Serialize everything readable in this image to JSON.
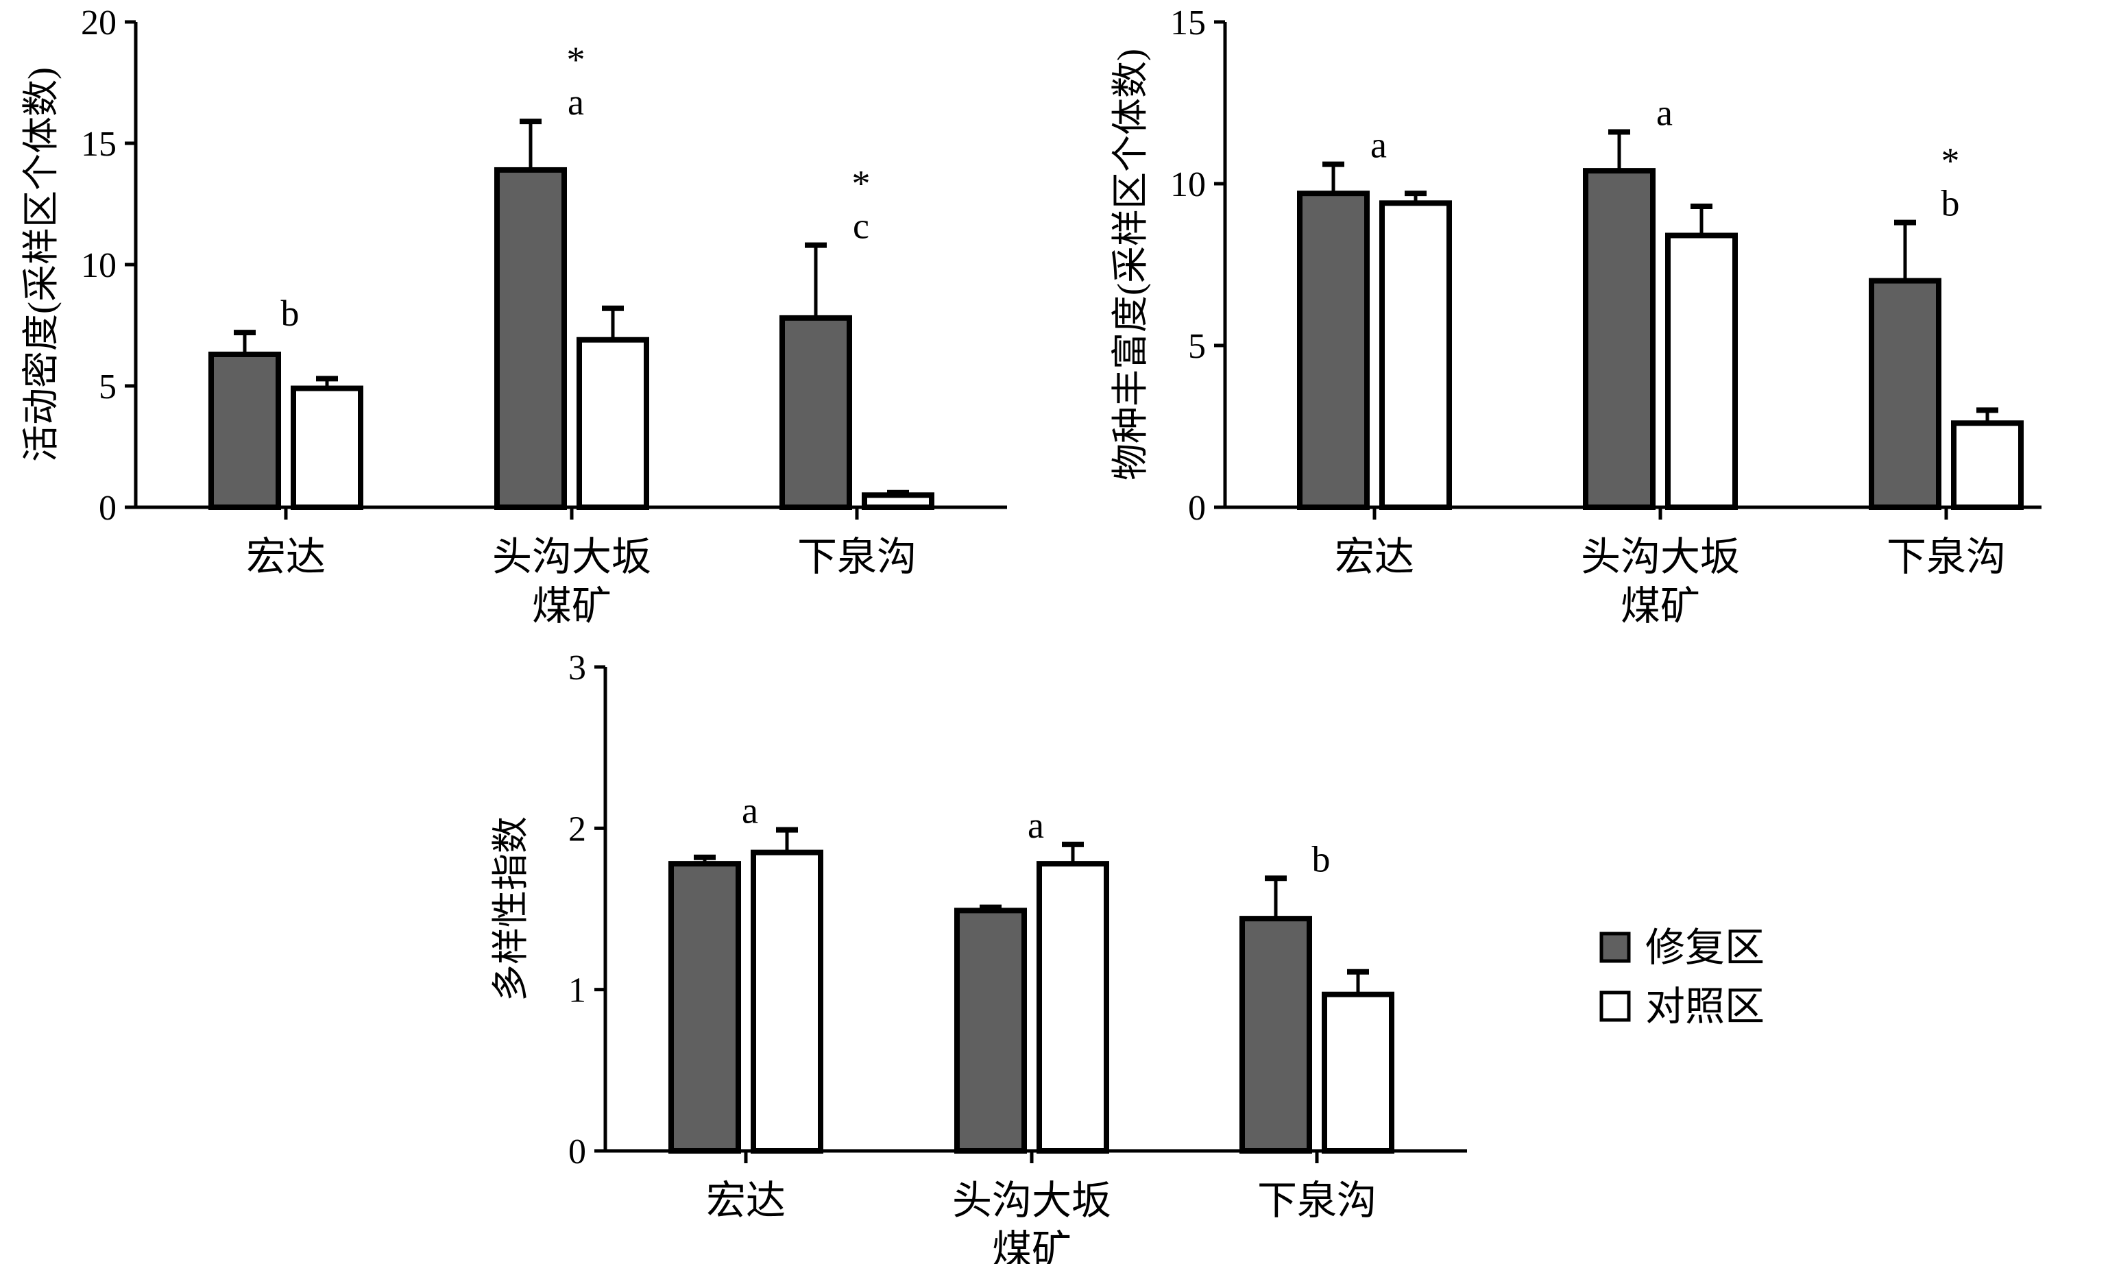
{
  "chart_data": [
    {
      "type": "bar",
      "title": "",
      "ylabel": "活动密度(采样区个体数)",
      "xlabel": "",
      "ylim": [
        0,
        20
      ],
      "yticks": [
        0,
        5,
        10,
        15,
        20
      ],
      "categories": [
        "宏达",
        "头沟大坂煤矿",
        "下泉沟"
      ],
      "category_lines": [
        [
          "宏达"
        ],
        [
          "头沟大坂",
          "煤矿"
        ],
        [
          "下泉沟"
        ]
      ],
      "series": [
        {
          "name": "修复区",
          "values": [
            6.3,
            13.9,
            7.8
          ],
          "errors": [
            0.9,
            2.0,
            3.0
          ]
        },
        {
          "name": "对照区",
          "values": [
            4.9,
            6.9,
            0.5
          ],
          "errors": [
            0.4,
            1.3,
            0.1
          ]
        }
      ],
      "annotations": [
        {
          "category": "宏达",
          "letter": "b",
          "star": ""
        },
        {
          "category": "头沟大坂煤矿",
          "letter": "a",
          "star": "*"
        },
        {
          "category": "下泉沟",
          "letter": "c",
          "star": "*"
        }
      ]
    },
    {
      "type": "bar",
      "title": "",
      "ylabel": "物种丰富度(采样区个体数)",
      "xlabel": "",
      "ylim": [
        0,
        15
      ],
      "yticks": [
        0,
        5,
        10,
        15
      ],
      "categories": [
        "宏达",
        "头沟大坂煤矿",
        "下泉沟"
      ],
      "category_lines": [
        [
          "宏达"
        ],
        [
          "头沟大坂",
          "煤矿"
        ],
        [
          "下泉沟"
        ]
      ],
      "series": [
        {
          "name": "修复区",
          "values": [
            9.7,
            10.4,
            7.0
          ],
          "errors": [
            0.9,
            1.2,
            1.8
          ]
        },
        {
          "name": "对照区",
          "values": [
            9.4,
            8.4,
            2.6
          ],
          "errors": [
            0.3,
            0.9,
            0.4
          ]
        }
      ],
      "annotations": [
        {
          "category": "宏达",
          "letter": "a",
          "star": ""
        },
        {
          "category": "头沟大坂煤矿",
          "letter": "a",
          "star": ""
        },
        {
          "category": "下泉沟",
          "letter": "b",
          "star": "*"
        }
      ]
    },
    {
      "type": "bar",
      "title": "",
      "ylabel": "多样性指数",
      "xlabel": "",
      "ylim": [
        0,
        3
      ],
      "yticks": [
        0,
        1,
        2,
        3
      ],
      "categories": [
        "宏达",
        "头沟大坂煤矿",
        "下泉沟"
      ],
      "category_lines": [
        [
          "宏达"
        ],
        [
          "头沟大坂",
          "煤矿"
        ],
        [
          "下泉沟"
        ]
      ],
      "series": [
        {
          "name": "修复区",
          "values": [
            1.78,
            1.49,
            1.44
          ],
          "errors": [
            0.04,
            0.02,
            0.25
          ]
        },
        {
          "name": "对照区",
          "values": [
            1.85,
            1.78,
            0.97
          ],
          "errors": [
            0.14,
            0.12,
            0.14
          ]
        }
      ],
      "annotations": [
        {
          "category": "宏达",
          "letter": "a",
          "star": ""
        },
        {
          "category": "头沟大坂煤矿",
          "letter": "a",
          "star": ""
        },
        {
          "category": "下泉沟",
          "letter": "b",
          "star": ""
        }
      ]
    }
  ],
  "legend": {
    "placement": "right of bottom chart",
    "items": [
      {
        "label": "修复区",
        "color": "#606060"
      },
      {
        "label": "对照区",
        "color": "#ffffff"
      }
    ]
  },
  "colors": {
    "restored": "#606060",
    "control": "#ffffff",
    "stroke": "#000000"
  }
}
